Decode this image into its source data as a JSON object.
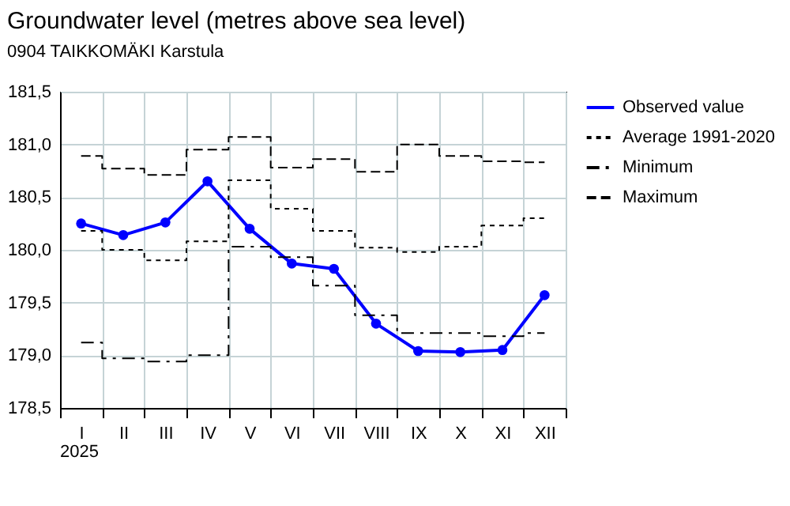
{
  "chart_data": {
    "type": "line",
    "title": "Groundwater level (metres above sea level)",
    "subtitle": "0904 TAIKKOMÄKI Karstula",
    "categories": [
      "I",
      "II",
      "III",
      "IV",
      "V",
      "VI",
      "VII",
      "VIII",
      "IX",
      "X",
      "XI",
      "XII"
    ],
    "series": [
      {
        "name": "Observed value",
        "type": "line",
        "color": "#0000ff",
        "marker": "circle",
        "line_style": "solid",
        "values": [
          180.25,
          180.14,
          180.26,
          180.65,
          180.2,
          179.87,
          179.82,
          179.3,
          179.04,
          179.03,
          179.05,
          179.57
        ]
      },
      {
        "name": "Average 1991-2020",
        "type": "step",
        "color": "#000000",
        "marker": "none",
        "line_style": "dotted",
        "values": [
          180.18,
          180.0,
          179.9,
          180.08,
          180.66,
          180.39,
          180.18,
          180.02,
          179.98,
          180.03,
          180.23,
          180.3
        ]
      },
      {
        "name": "Minimum",
        "type": "step",
        "color": "#000000",
        "marker": "none",
        "line_style": "dashdot",
        "values": [
          179.12,
          178.97,
          178.94,
          179.0,
          180.03,
          179.93,
          179.66,
          179.38,
          179.21,
          179.21,
          179.18,
          179.21
        ]
      },
      {
        "name": "Maximum",
        "type": "step",
        "color": "#000000",
        "marker": "none",
        "line_style": "dashed",
        "values": [
          180.89,
          180.77,
          180.71,
          180.95,
          181.07,
          180.78,
          180.86,
          180.74,
          181.0,
          180.89,
          180.84,
          180.83
        ]
      }
    ],
    "ylim": [
      178.5,
      181.5
    ],
    "yticks": [
      {
        "value": 178.5,
        "label": "178,5"
      },
      {
        "value": 179,
        "label": "179,0"
      },
      {
        "value": 179.5,
        "label": "179,5"
      },
      {
        "value": 180,
        "label": "180,0"
      },
      {
        "value": 180.5,
        "label": "180,5"
      },
      {
        "value": 181,
        "label": "181,0"
      },
      {
        "value": 181.5,
        "label": "181,5"
      }
    ],
    "grid": true,
    "legend": "right",
    "annotations": [
      "2025"
    ]
  }
}
